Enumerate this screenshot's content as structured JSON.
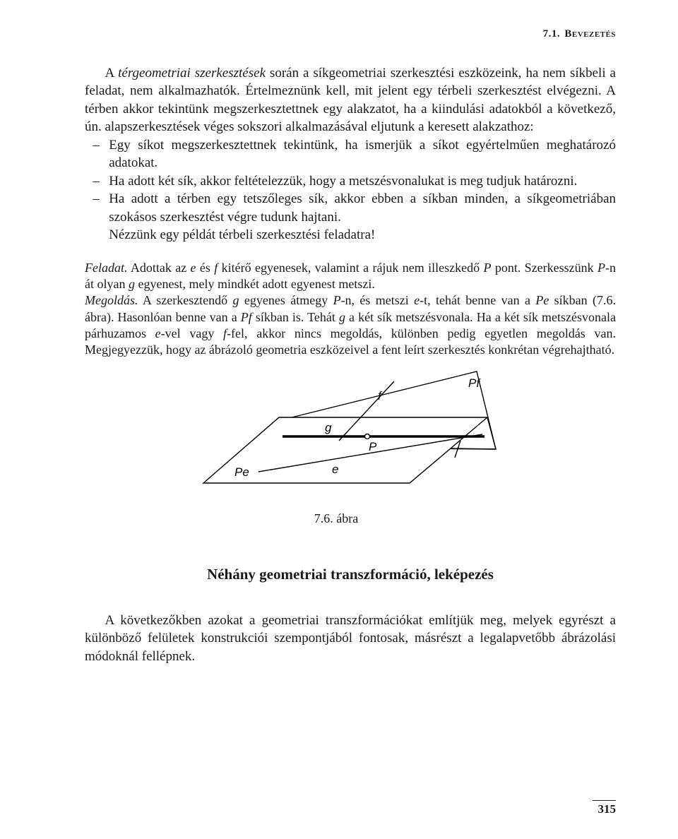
{
  "header": "7.1. Bevezetés",
  "para1": "A <i>térgeometriai szerkesztések</i> során a síkgeometriai szerkesztési eszközeink, ha nem síkbeli a feladat, nem alkalmazhatók. Értelmeznünk kell, mit jelent egy térbeli szerkesztést elvégezni. A térben akkor tekintünk megszerkesztettnek egy alakzatot, ha a kiindulási adatokból a következő, ún. alapszerkesztések véges sokszori alkalmazásával eljutunk a keresett alakzathoz:",
  "bullets": [
    "Egy síkot megszerkesztettnek tekintünk, ha ismerjük a síkot egyértelműen meghatározó adatokat.",
    "Ha adott két sík, akkor feltételezzük, hogy a metszésvonalukat is meg tudjuk határozni.",
    "Ha adott a térben egy tetszőleges sík, akkor ebben a síkban minden, a síkgeometriában szokásos szerkesztést végre tudunk hajtani.",
    "Nézzünk egy példát térbeli szerkesztési feladatra!"
  ],
  "feladat_label": "Feladat.",
  "feladat_text": " Adottak az <i>e</i> és <i>f</i> kitérő egyenesek, valamint a rájuk nem illeszkedő <i>P</i> pont. Szerkesszünk <i>P</i>-n át olyan <i>g</i> egyenest, mely mindkét adott egyenest metszi.",
  "megoldas_label": "Megoldás.",
  "megoldas_text": " A szerkesztendő <i>g</i> egyenes átmegy <i>P</i>-n, és metszi <i>e</i>-t, tehát benne van a <i>Pe</i> síkban (7.6. ábra). Hasonlóan benne van a <i>Pf</i> síkban is. Tehát <i>g</i> a két sík metszésvonala. Ha a két sík metszésvonala párhuzamos <i>e</i>-vel vagy <i>f</i>-fel, akkor nincs megoldás, különben pedig egyetlen megoldás van. Megjegyezzük, hogy az ábrázoló geometria eszközeivel a fent leírt szerkesztés konkrétan végrehajtható.",
  "figure": {
    "caption": "7.6. ábra",
    "labels": {
      "f": "f",
      "g": "g",
      "P": "P",
      "e": "e",
      "Pe": "Pe",
      "Pf": "Pf"
    },
    "stroke": "#000000",
    "stroke_thin": 1.4,
    "stroke_thick": 3.2,
    "bg": "#ffffff"
  },
  "subheading": "Néhány geometriai transzformáció, leképezés",
  "closing": "A következőkben azokat a geometriai transzformációkat említjük meg, melyek egyrészt a különböző felületek konstrukciói szempontjából fontosak, másrészt a legalapvetőbb ábrázolási módoknál fellépnek.",
  "page_number": "315"
}
